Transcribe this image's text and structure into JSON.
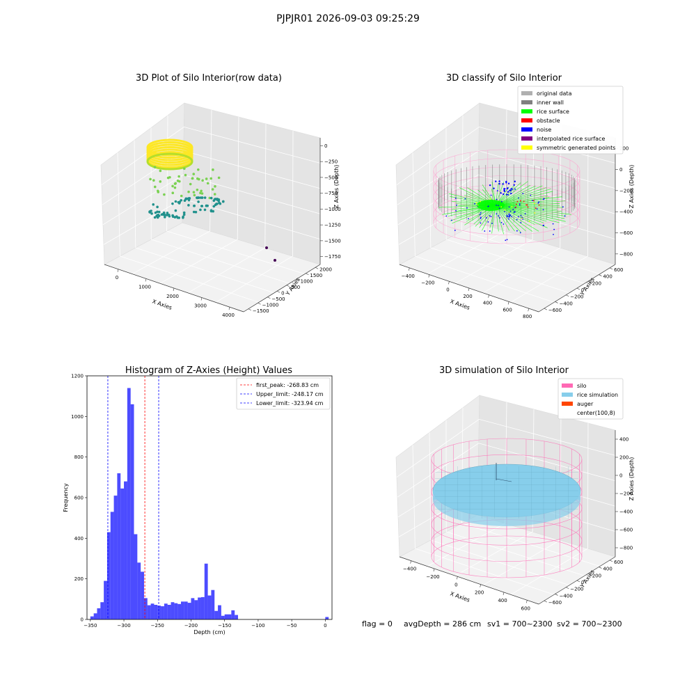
{
  "page_title": "PJPJR01 2026-09-03 09:25:29",
  "footer": {
    "flag": "flag = 0",
    "avg_depth": "avgDepth = 286 cm",
    "sv1": "sv1 = 700~2300",
    "sv2": "sv2 = 700~2300"
  },
  "chart_data": [
    {
      "type": "scatter",
      "title": "3D Plot of Silo Interior(row data)",
      "xlabel": "X Axies",
      "ylabel": "Y Axies",
      "zlabel": "Z Axies (Depth)",
      "x_ticks": [
        "0",
        "1000",
        "2000",
        "3000",
        "4000"
      ],
      "y_ticks": [
        "2000",
        "1500",
        "1000",
        "500",
        "0",
        "−500",
        "−1000",
        "−1500"
      ],
      "z_ticks": [
        "0",
        "−250",
        "−500",
        "−750",
        "−1000",
        "−1250",
        "−1500",
        "−1750"
      ],
      "colormap": [
        "#440154",
        "#21918c",
        "#7ad151",
        "#fde725"
      ]
    },
    {
      "type": "scatter",
      "title": "3D classify of Silo Interior",
      "xlabel": "X Axies",
      "ylabel": "Y Axies",
      "zlabel": "Z Axies (Depth)",
      "x_ticks": [
        "−400",
        "−200",
        "0",
        "200",
        "400",
        "600",
        "800"
      ],
      "y_ticks": [
        "600",
        "400",
        "200",
        "0",
        "−200",
        "−400",
        "−600"
      ],
      "z_ticks": [
        "200",
        "0",
        "−200",
        "−400",
        "−600",
        "−800"
      ],
      "legend": [
        {
          "label": "original data",
          "color": "#b0b0b0"
        },
        {
          "label": "inner wall",
          "color": "#808080"
        },
        {
          "label": "rice surface",
          "color": "#00ff00"
        },
        {
          "label": "obstacle",
          "color": "#ff0000"
        },
        {
          "label": "noise",
          "color": "#0000ff"
        },
        {
          "label": "interpolated rice surface",
          "color": "#800080"
        },
        {
          "label": "symmetric generated points",
          "color": "#ffff00"
        }
      ]
    },
    {
      "type": "bar",
      "title": "Histogram of Z-Axies (Height) Values",
      "xlabel": "Depth (cm)",
      "ylabel": "Frequency",
      "xlim": [
        -355,
        10
      ],
      "ylim": [
        0,
        1200
      ],
      "x_ticks": [
        -350,
        -300,
        -250,
        -200,
        -150,
        -100,
        -50,
        0
      ],
      "y_ticks": [
        0,
        200,
        400,
        600,
        800,
        1000,
        1200
      ],
      "bin_width": 5,
      "bar_color": "#0000ff",
      "bins": [
        [
          -350,
          15
        ],
        [
          -345,
          30
        ],
        [
          -340,
          55
        ],
        [
          -335,
          85
        ],
        [
          -330,
          190
        ],
        [
          -325,
          430
        ],
        [
          -320,
          530
        ],
        [
          -315,
          610
        ],
        [
          -310,
          720
        ],
        [
          -305,
          645
        ],
        [
          -300,
          680
        ],
        [
          -295,
          1140
        ],
        [
          -290,
          1060
        ],
        [
          -285,
          420
        ],
        [
          -280,
          280
        ],
        [
          -275,
          235
        ],
        [
          -270,
          105
        ],
        [
          -265,
          70
        ],
        [
          -260,
          78
        ],
        [
          -255,
          72
        ],
        [
          -250,
          68
        ],
        [
          -245,
          65
        ],
        [
          -240,
          78
        ],
        [
          -235,
          72
        ],
        [
          -230,
          85
        ],
        [
          -225,
          80
        ],
        [
          -220,
          76
        ],
        [
          -215,
          88
        ],
        [
          -210,
          88
        ],
        [
          -205,
          82
        ],
        [
          -200,
          105
        ],
        [
          -195,
          95
        ],
        [
          -190,
          108
        ],
        [
          -185,
          110
        ],
        [
          -180,
          275
        ],
        [
          -175,
          118
        ],
        [
          -170,
          145
        ],
        [
          -165,
          42
        ],
        [
          -160,
          70
        ],
        [
          -155,
          18
        ],
        [
          -150,
          25
        ],
        [
          -145,
          25
        ],
        [
          -140,
          45
        ],
        [
          -135,
          22
        ],
        [
          -130,
          0
        ],
        [
          -125,
          0
        ],
        [
          -120,
          0
        ],
        [
          -115,
          0
        ],
        [
          -110,
          0
        ],
        [
          -105,
          0
        ],
        [
          -100,
          0
        ],
        [
          -95,
          0
        ],
        [
          -90,
          0
        ],
        [
          -85,
          0
        ],
        [
          -80,
          0
        ],
        [
          -75,
          0
        ],
        [
          -70,
          0
        ],
        [
          -65,
          0
        ],
        [
          -60,
          0
        ],
        [
          -55,
          0
        ],
        [
          -50,
          0
        ],
        [
          -45,
          0
        ],
        [
          -40,
          0
        ],
        [
          -35,
          0
        ],
        [
          -30,
          0
        ],
        [
          -25,
          0
        ],
        [
          -20,
          0
        ],
        [
          -15,
          0
        ],
        [
          -10,
          0
        ],
        [
          -5,
          0
        ],
        [
          0,
          12
        ]
      ],
      "vlines": [
        {
          "x": -268.83,
          "color": "#ff0000",
          "label": "first_peak: -268.83 cm"
        },
        {
          "x": -248.17,
          "color": "#0000ff",
          "label": "Upper_limit: -248.17 cm"
        },
        {
          "x": -323.94,
          "color": "#0000ff",
          "label": "Lower_limit: -323.94 cm"
        }
      ],
      "legend_position": "top-right"
    },
    {
      "type": "scatter",
      "title": "3D simulation of Silo Interior",
      "xlabel": "X Axies",
      "ylabel": "Y Axies",
      "zlabel": "Z Axies (Depth)",
      "x_ticks": [
        "−400",
        "−200",
        "0",
        "200",
        "400",
        "600"
      ],
      "y_ticks": [
        "600",
        "400",
        "200",
        "0",
        "−200",
        "−400",
        "−600"
      ],
      "z_ticks": [
        "400",
        "200",
        "0",
        "−200",
        "−400",
        "−600",
        "−800"
      ],
      "legend": [
        {
          "label": "silo",
          "color": "#ff69b4"
        },
        {
          "label": "rice simulation",
          "color": "#87ceeb"
        },
        {
          "label": "auger",
          "color": "#ff4500"
        },
        {
          "label": "center(100,8)",
          "color": "#ffffff"
        }
      ]
    }
  ]
}
